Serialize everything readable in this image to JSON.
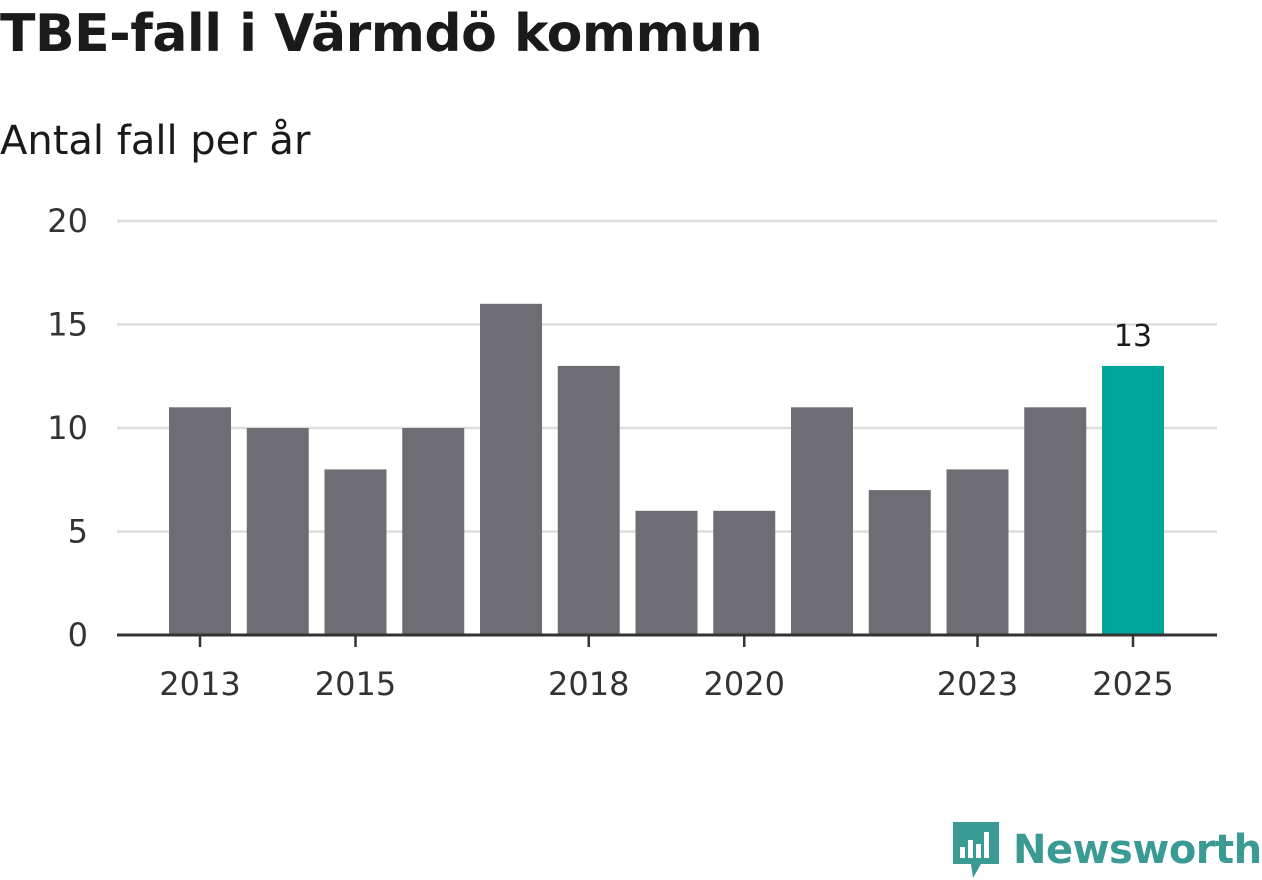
{
  "header": {
    "title": "TBE-fall i Värmdö kommun",
    "subtitle": "Antal fall per år"
  },
  "chart_data": {
    "type": "bar",
    "title": "TBE-fall i Värmdö kommun",
    "subtitle": "Antal fall per år",
    "xlabel": "",
    "ylabel": "",
    "categories": [
      "2013",
      "2014",
      "2015",
      "2016",
      "2017",
      "2018",
      "2019",
      "2020",
      "2021",
      "2022",
      "2023",
      "2024",
      "2025"
    ],
    "values": [
      11,
      10,
      8,
      10,
      16,
      13,
      6,
      6,
      11,
      7,
      8,
      11,
      13
    ],
    "ylim": [
      0,
      20
    ],
    "yticks": [
      0,
      5,
      10,
      15,
      20
    ],
    "xtick_labels": [
      "2013",
      "2015",
      "2018",
      "2020",
      "2023",
      "2025"
    ],
    "highlight": {
      "category": "2025",
      "label": "13"
    },
    "grid": true,
    "colors": {
      "bar": "#6e6d73",
      "highlight": "#00a59a",
      "grid": "#dddddd",
      "axis": "#333333"
    }
  },
  "brand": {
    "name": "Newsworthy",
    "icon": "newsworthy-logo-icon",
    "color": "#3a9a94"
  }
}
